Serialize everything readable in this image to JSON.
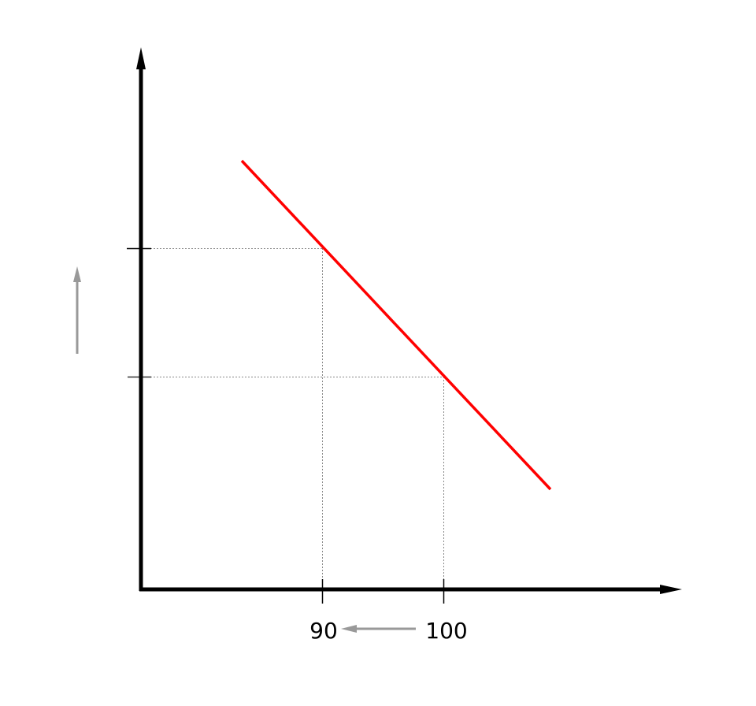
{
  "diagram": {
    "x_tick_labels": [
      "90",
      "100"
    ],
    "colors": {
      "axis": "#000000",
      "curve": "#ff0000",
      "guide": "#888888",
      "arrow": "#999999"
    },
    "icons": [
      "x-axis-arrow-icon",
      "y-axis-arrow-icon",
      "price-decrease-arrow-icon",
      "quantity-increase-arrow-icon"
    ]
  }
}
